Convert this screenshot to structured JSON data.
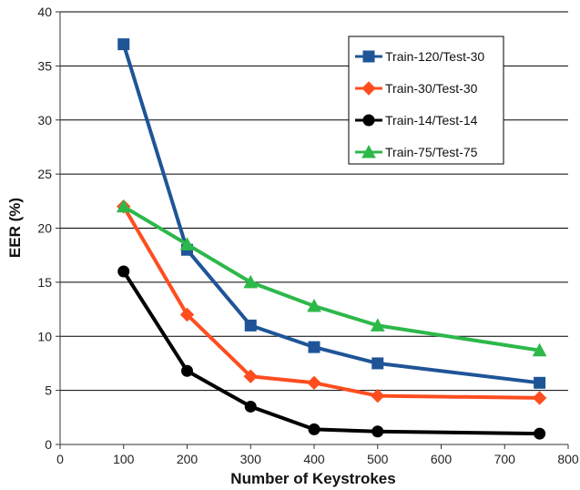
{
  "chart_data": {
    "type": "line",
    "title": "",
    "xlabel": "Number of Keystrokes",
    "ylabel": "EER (%)",
    "xlim": [
      0,
      800
    ],
    "ylim": [
      0,
      40
    ],
    "xticks": [
      0,
      100,
      200,
      300,
      400,
      500,
      600,
      700,
      800
    ],
    "yticks": [
      0,
      5,
      10,
      15,
      20,
      25,
      30,
      35,
      40
    ],
    "grid": "horizontal",
    "legend_position": "top-right",
    "series": [
      {
        "name": "Train-120/Test-30",
        "color": "#1f5597",
        "marker": "square",
        "x": [
          100,
          200,
          300,
          400,
          500,
          755
        ],
        "y": [
          37,
          18,
          11,
          9,
          7.5,
          5.7
        ]
      },
      {
        "name": "Train-30/Test-30",
        "color": "#ff4d1f",
        "marker": "diamond",
        "x": [
          100,
          200,
          300,
          400,
          500,
          755
        ],
        "y": [
          22,
          12,
          6.3,
          5.7,
          4.5,
          4.3
        ]
      },
      {
        "name": "Train-14/Test-14",
        "color": "#000000",
        "marker": "circle",
        "x": [
          100,
          200,
          300,
          400,
          500,
          755
        ],
        "y": [
          16,
          6.8,
          3.5,
          1.4,
          1.2,
          1.0
        ]
      },
      {
        "name": "Train-75/Test-75",
        "color": "#2db84a",
        "marker": "triangle",
        "x": [
          100,
          200,
          300,
          400,
          500,
          755
        ],
        "y": [
          22,
          18.5,
          15,
          12.8,
          11,
          8.7
        ]
      }
    ]
  }
}
